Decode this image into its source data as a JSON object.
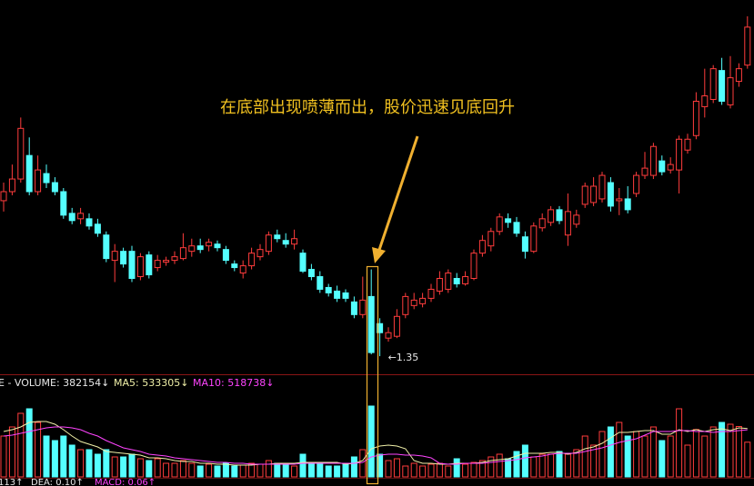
{
  "chart_data": [
    {
      "type": "candlestick",
      "annotation": "在底部出现喷薄而出，股价迅速见底回升",
      "min_label": {
        "value": 1.35,
        "label": "←1.35"
      },
      "up_color": "#ff3c3c",
      "down_color": "#54ffff",
      "ylim": [
        1.26,
        3.31
      ],
      "open": [
        2.21,
        2.26,
        2.33,
        2.46,
        2.26,
        2.36,
        2.31,
        2.26,
        2.14,
        2.11,
        2.11,
        2.08,
        2.02,
        1.88,
        1.93,
        1.93,
        1.79,
        1.91,
        1.84,
        1.87,
        1.88,
        1.89,
        1.93,
        1.96,
        1.96,
        1.97,
        1.94,
        1.86,
        1.81,
        1.85,
        1.9,
        1.93,
        2.02,
        1.99,
        1.97,
        1.92,
        1.83,
        1.79,
        1.73,
        1.71,
        1.7,
        1.65,
        1.58,
        1.68,
        1.53,
        1.45,
        1.46,
        1.58,
        1.63,
        1.64,
        1.67,
        1.71,
        1.72,
        1.78,
        1.75,
        1.78,
        1.92,
        1.96,
        2.04,
        2.11,
        2.09,
        2.01,
        1.93,
        2.06,
        2.09,
        2.16,
        2.02,
        2.08,
        2.19,
        2.2,
        2.22,
        2.31,
        2.21,
        2.22,
        2.25,
        2.35,
        2.35,
        2.43,
        2.38,
        2.38,
        2.49,
        2.57,
        2.73,
        2.77,
        2.93,
        2.74,
        2.87,
        2.96
      ],
      "high": [
        2.31,
        2.41,
        2.67,
        2.56,
        2.46,
        2.41,
        2.34,
        2.28,
        2.17,
        2.17,
        2.14,
        2.11,
        2.04,
        1.97,
        1.95,
        1.96,
        1.92,
        1.93,
        1.91,
        1.9,
        1.93,
        2.03,
        2.0,
        2.0,
        2.0,
        1.99,
        1.96,
        1.88,
        1.88,
        1.95,
        1.97,
        2.04,
        2.05,
        2.03,
        2.05,
        1.94,
        1.86,
        1.82,
        1.75,
        1.74,
        1.72,
        1.68,
        1.79,
        1.83,
        1.56,
        1.51,
        1.61,
        1.7,
        1.7,
        1.7,
        1.75,
        1.82,
        1.83,
        1.81,
        1.82,
        1.94,
        2.02,
        2.06,
        2.14,
        2.14,
        2.12,
        2.04,
        2.09,
        2.14,
        2.18,
        2.18,
        2.25,
        2.16,
        2.31,
        2.34,
        2.37,
        2.34,
        2.28,
        2.29,
        2.37,
        2.48,
        2.53,
        2.46,
        2.45,
        2.57,
        2.58,
        2.81,
        2.94,
        2.96,
        3.0,
        3.01,
        2.97,
        3.23
      ],
      "low": [
        2.15,
        2.24,
        2.31,
        2.24,
        2.24,
        2.28,
        2.24,
        2.11,
        2.08,
        2.08,
        2.05,
        2.01,
        1.87,
        1.76,
        1.84,
        1.76,
        1.77,
        1.78,
        1.82,
        1.85,
        1.86,
        1.88,
        1.9,
        1.92,
        1.93,
        1.93,
        1.86,
        1.82,
        1.78,
        1.83,
        1.88,
        1.91,
        1.98,
        1.95,
        1.94,
        1.81,
        1.77,
        1.7,
        1.68,
        1.65,
        1.65,
        1.56,
        1.56,
        1.36,
        1.35,
        1.43,
        1.45,
        1.56,
        1.61,
        1.62,
        1.65,
        1.69,
        1.7,
        1.73,
        1.74,
        1.77,
        1.9,
        1.93,
        2.02,
        2.06,
        2.01,
        1.89,
        1.92,
        2.04,
        2.07,
        2.08,
        1.96,
        2.06,
        2.17,
        2.18,
        2.2,
        2.15,
        2.13,
        2.14,
        2.23,
        2.33,
        2.33,
        2.35,
        2.36,
        2.25,
        2.47,
        2.55,
        2.67,
        2.75,
        2.74,
        2.72,
        2.84,
        2.94
      ],
      "close": [
        2.26,
        2.33,
        2.61,
        2.26,
        2.38,
        2.31,
        2.26,
        2.13,
        2.1,
        2.14,
        2.07,
        2.03,
        1.89,
        1.93,
        1.86,
        1.78,
        1.9,
        1.8,
        1.88,
        1.88,
        1.9,
        1.95,
        1.96,
        1.94,
        1.98,
        1.95,
        1.88,
        1.84,
        1.85,
        1.92,
        1.94,
        2.02,
        2.0,
        1.97,
        2.0,
        1.82,
        1.79,
        1.72,
        1.7,
        1.67,
        1.67,
        1.58,
        1.66,
        1.37,
        1.48,
        1.48,
        1.57,
        1.68,
        1.66,
        1.67,
        1.72,
        1.78,
        1.81,
        1.75,
        1.79,
        1.92,
        1.99,
        2.04,
        2.12,
        2.09,
        2.03,
        1.93,
        2.07,
        2.11,
        2.16,
        2.1,
        2.15,
        2.13,
        2.29,
        2.29,
        2.35,
        2.18,
        2.22,
        2.16,
        2.35,
        2.39,
        2.51,
        2.37,
        2.41,
        2.55,
        2.55,
        2.76,
        2.79,
        2.94,
        2.76,
        2.89,
        2.94,
        3.17
      ]
    },
    {
      "type": "volume",
      "ylim": [
        0,
        1050000
      ],
      "series": [
        {
          "name": "E - VOLUME: 382154↓",
          "type": "bar",
          "color": "#e8e8e8",
          "values": [
            450000,
            550000,
            700000,
            750000,
            600000,
            450000,
            400000,
            450000,
            350000,
            300000,
            300000,
            250000,
            300000,
            220000,
            220000,
            250000,
            200000,
            180000,
            200000,
            150000,
            150000,
            180000,
            150000,
            120000,
            140000,
            120000,
            150000,
            120000,
            130000,
            150000,
            140000,
            180000,
            150000,
            140000,
            120000,
            250000,
            150000,
            140000,
            120000,
            120000,
            150000,
            220000,
            300000,
            780000,
            250000,
            180000,
            200000,
            120000,
            150000,
            120000,
            140000,
            150000,
            120000,
            200000,
            140000,
            160000,
            180000,
            220000,
            250000,
            200000,
            280000,
            350000,
            220000,
            250000,
            250000,
            280000,
            250000,
            300000,
            450000,
            350000,
            500000,
            550000,
            600000,
            450000,
            500000,
            450000,
            550000,
            400000,
            450000,
            750000,
            350000,
            522000,
            450000,
            550000,
            600000,
            580000,
            555000,
            382154
          ]
        },
        {
          "name": "MA5: 533305↓",
          "type": "line",
          "color": "#f0f0a8",
          "values": [
            500000,
            520000,
            550000,
            600000,
            610000,
            610000,
            580000,
            520000,
            450000,
            390000,
            360000,
            330000,
            280000,
            270000,
            260000,
            250000,
            240000,
            210000,
            210000,
            200000,
            180000,
            170000,
            170000,
            150000,
            150000,
            140000,
            140000,
            130000,
            130000,
            130000,
            140000,
            140000,
            150000,
            150000,
            150000,
            160000,
            160000,
            160000,
            160000,
            160000,
            140000,
            150000,
            180000,
            310000,
            340000,
            350000,
            340000,
            310000,
            180000,
            150000,
            150000,
            140000,
            140000,
            150000,
            150000,
            150000,
            160000,
            180000,
            190000,
            200000,
            230000,
            260000,
            260000,
            260000,
            270000,
            270000,
            250000,
            270000,
            310000,
            330000,
            370000,
            430000,
            490000,
            490000,
            500000,
            510000,
            510000,
            470000,
            470000,
            520000,
            500000,
            520000,
            500000,
            520000,
            530000,
            510000,
            540000,
            533305
          ]
        },
        {
          "name": "MA10: 518738↓",
          "type": "line",
          "color": "#ff44ff",
          "values": [
            450000,
            460000,
            480000,
            500000,
            520000,
            540000,
            550000,
            550000,
            540000,
            520000,
            480000,
            450000,
            400000,
            360000,
            320000,
            300000,
            280000,
            250000,
            240000,
            230000,
            210000,
            200000,
            190000,
            180000,
            170000,
            160000,
            160000,
            150000,
            150000,
            140000,
            140000,
            140000,
            140000,
            140000,
            140000,
            150000,
            150000,
            150000,
            150000,
            150000,
            150000,
            150000,
            160000,
            220000,
            240000,
            250000,
            250000,
            240000,
            240000,
            230000,
            210000,
            150000,
            140000,
            140000,
            150000,
            150000,
            150000,
            160000,
            170000,
            180000,
            190000,
            210000,
            220000,
            230000,
            250000,
            260000,
            260000,
            260000,
            280000,
            300000,
            320000,
            350000,
            380000,
            400000,
            420000,
            460000,
            500000,
            500000,
            500000,
            510000,
            510000,
            500000,
            500000,
            490000,
            500000,
            500000,
            510000,
            518738
          ]
        }
      ]
    }
  ],
  "footer": [
    {
      "text": "113↑",
      "color": "#e8e8e8"
    },
    {
      "text": "DEA: 0.10↑",
      "color": "#e8e8e8"
    },
    {
      "text": "MACD: 0.06↑",
      "color": "#ff44ff"
    }
  ]
}
